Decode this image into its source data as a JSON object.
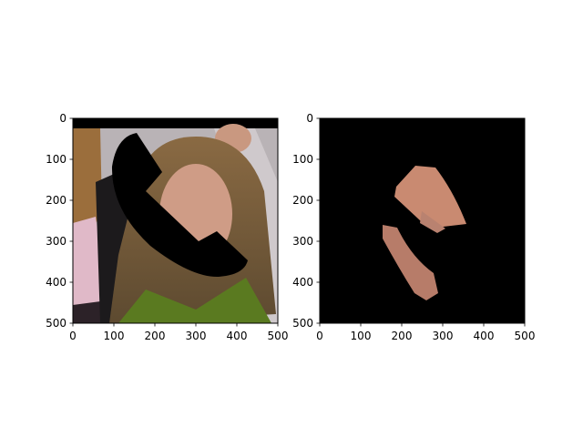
{
  "figure": {
    "background": "#ffffff",
    "panels_count": 2
  },
  "chart_data": [
    {
      "type": "image",
      "panel": "left",
      "content": "photo-of-woman-with-black-ellipse-mask",
      "xlim": [
        0,
        500
      ],
      "ylim": [
        500,
        0
      ],
      "x_ticks": [
        0,
        100,
        200,
        300,
        400,
        500
      ],
      "y_ticks": [
        0,
        100,
        200,
        300,
        400,
        500
      ],
      "title": "",
      "xlabel": "",
      "ylabel": ""
    },
    {
      "type": "image",
      "panel": "right",
      "content": "masked-face-region-on-black",
      "xlim": [
        0,
        500
      ],
      "ylim": [
        500,
        0
      ],
      "x_ticks": [
        0,
        100,
        200,
        300,
        400,
        500
      ],
      "y_ticks": [
        0,
        100,
        200,
        300,
        400,
        500
      ],
      "title": "",
      "xlabel": "",
      "ylabel": ""
    }
  ]
}
